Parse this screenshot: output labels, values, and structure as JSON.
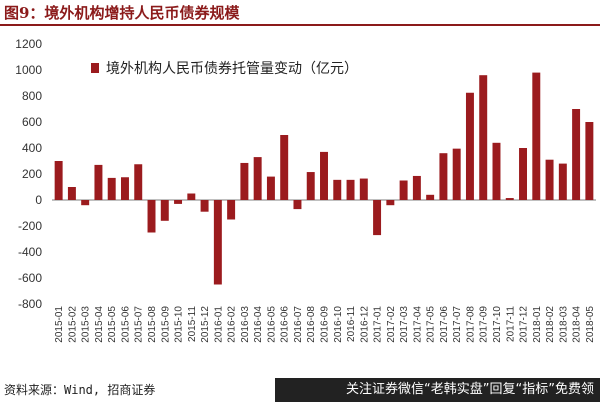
{
  "header": {
    "title": "图9：境外机构增持人民币债券规模"
  },
  "footer": {
    "source": "资料来源：Wind, 招商证券",
    "banner": "关注证券微信“老韩实盘”回复“指标”免费领"
  },
  "colors": {
    "bar": "#9b1b1e",
    "title": "#8b1a1a"
  },
  "chart_data": {
    "type": "bar",
    "categories": [
      "2015-01",
      "2015-02",
      "2015-03",
      "2015-04",
      "2015-05",
      "2015-06",
      "2015-07",
      "2015-08",
      "2015-09",
      "2015-10",
      "2015-11",
      "2015-12",
      "2016-01",
      "2016-02",
      "2016-03",
      "2016-04",
      "2016-05",
      "2016-06",
      "2016-07",
      "2016-08",
      "2016-09",
      "2016-10",
      "2016-11",
      "2016-12",
      "2017-01",
      "2017-02",
      "2017-03",
      "2017-04",
      "2017-05",
      "2017-06",
      "2017-07",
      "2017-08",
      "2017-09",
      "2017-10",
      "2017-11",
      "2017-12",
      "2018-01",
      "2018-02",
      "2018-03",
      "2018-04",
      "2018-05"
    ],
    "series": [
      {
        "name": "境外机构人民币债券托管量变动（亿元）",
        "values": [
          300,
          100,
          -40,
          270,
          170,
          175,
          275,
          -250,
          -160,
          -30,
          50,
          -90,
          -650,
          -150,
          285,
          330,
          180,
          500,
          -70,
          215,
          370,
          155,
          155,
          165,
          -270,
          -40,
          150,
          185,
          40,
          360,
          395,
          825,
          960,
          440,
          15,
          400,
          980,
          310,
          280,
          700,
          600
        ]
      }
    ],
    "ylim": [
      -800,
      1200
    ],
    "yticks": [
      -800,
      -600,
      -400,
      -200,
      0,
      200,
      400,
      600,
      800,
      1000,
      1200
    ],
    "legend_position": "top-left",
    "grid": false,
    "xlabel": "",
    "ylabel": ""
  }
}
